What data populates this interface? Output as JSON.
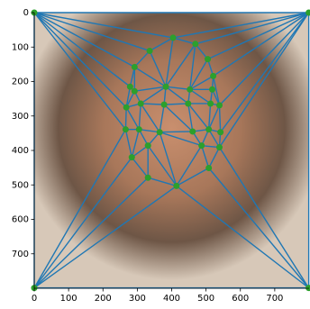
{
  "chart_data": {
    "type": "triplot",
    "x": [
      0,
      799,
      0,
      799,
      404,
      469,
      336,
      505,
      292,
      521,
      279,
      292,
      383,
      453,
      518,
      268,
      310,
      378,
      448,
      513,
      539,
      266,
      305,
      365,
      461,
      508,
      542,
      331,
      487,
      539,
      284,
      508,
      331,
      414
    ],
    "y": [
      0,
      0,
      799,
      799,
      73,
      91,
      111,
      135,
      158,
      184,
      215,
      228,
      215,
      223,
      223,
      275,
      264,
      267,
      264,
      264,
      269,
      339,
      339,
      347,
      345,
      339,
      347,
      386,
      386,
      391,
      420,
      451,
      479,
      503
    ],
    "line_color": "#1f77b4",
    "point_color": "#2ca02c",
    "xlim": [
      0,
      800
    ],
    "ylim": [
      800,
      0
    ],
    "xticks": [
      0,
      100,
      200,
      300,
      400,
      500,
      600,
      700
    ],
    "yticks": [
      0,
      100,
      200,
      300,
      400,
      500,
      600,
      700
    ]
  }
}
